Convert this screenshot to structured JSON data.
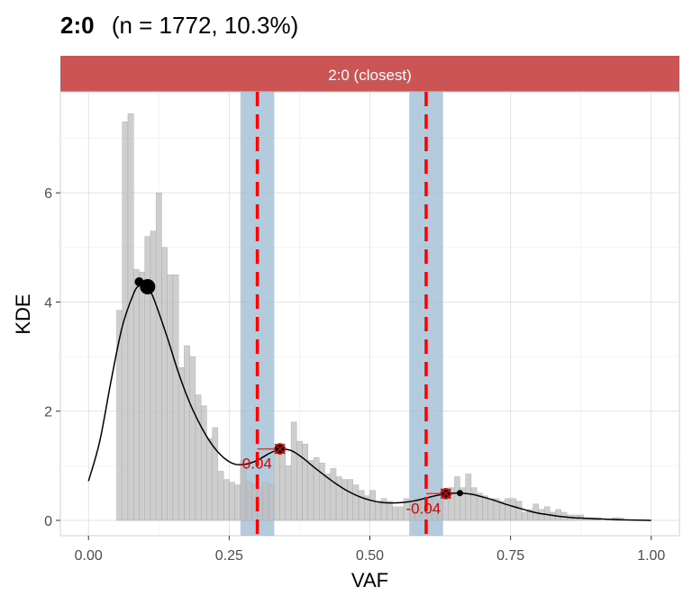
{
  "title": {
    "bold": "2:0",
    "rest": "(n = 1772, 10.3%)"
  },
  "facet_strip": {
    "label": "2:0 (closest)",
    "color": "#CD5454"
  },
  "chart_data": {
    "type": "bar",
    "xlabel": "VAF",
    "ylabel": "KDE",
    "xlim": [
      -0.05,
      1.05
    ],
    "ylim": [
      -0.28,
      7.85
    ],
    "x_ticks": [
      {
        "value": 0.0,
        "label": "0.00"
      },
      {
        "value": 0.25,
        "label": "0.25"
      },
      {
        "value": 0.5,
        "label": "0.50"
      },
      {
        "value": 0.75,
        "label": "0.75"
      },
      {
        "value": 1.0,
        "label": "1.00"
      }
    ],
    "y_ticks": [
      {
        "value": 0,
        "label": "0"
      },
      {
        "value": 2,
        "label": "2"
      },
      {
        "value": 4,
        "label": "4"
      },
      {
        "value": 6,
        "label": "6"
      }
    ],
    "grid": true,
    "histogram": {
      "bin_width": 0.01,
      "bins_start": [
        0.05,
        0.06,
        0.07,
        0.08,
        0.09,
        0.1,
        0.11,
        0.12,
        0.13,
        0.14,
        0.15,
        0.16,
        0.17,
        0.18,
        0.19,
        0.2,
        0.21,
        0.22,
        0.23,
        0.24,
        0.25,
        0.26,
        0.27,
        0.28,
        0.29,
        0.3,
        0.31,
        0.32,
        0.33,
        0.34,
        0.35,
        0.36,
        0.37,
        0.38,
        0.39,
        0.4,
        0.41,
        0.42,
        0.43,
        0.44,
        0.45,
        0.46,
        0.47,
        0.48,
        0.49,
        0.5,
        0.51,
        0.52,
        0.53,
        0.54,
        0.55,
        0.56,
        0.57,
        0.58,
        0.59,
        0.6,
        0.61,
        0.62,
        0.63,
        0.64,
        0.65,
        0.66,
        0.67,
        0.68,
        0.69,
        0.7,
        0.71,
        0.72,
        0.73,
        0.74,
        0.75,
        0.76,
        0.77,
        0.78,
        0.79,
        0.8,
        0.81,
        0.82,
        0.83,
        0.84,
        0.85,
        0.86,
        0.87,
        0.88,
        0.89,
        0.9,
        0.91,
        0.92,
        0.93,
        0.94
      ],
      "values": [
        3.85,
        7.3,
        7.45,
        4.6,
        4.55,
        5.2,
        5.3,
        6.0,
        5.0,
        4.5,
        4.5,
        2.8,
        3.2,
        3.0,
        2.3,
        2.1,
        1.5,
        1.7,
        0.9,
        0.75,
        0.7,
        0.65,
        1.1,
        0.7,
        0.65,
        0.6,
        0.7,
        0.65,
        1.25,
        1.35,
        1.0,
        1.8,
        1.45,
        1.4,
        1.1,
        1.15,
        1.05,
        0.85,
        0.95,
        0.8,
        0.75,
        0.75,
        0.65,
        0.55,
        0.45,
        0.55,
        0.35,
        0.4,
        0.35,
        0.25,
        0.25,
        0.4,
        0.35,
        0.4,
        0.35,
        0.45,
        0.4,
        0.35,
        0.55,
        0.6,
        0.8,
        0.6,
        0.85,
        0.6,
        0.5,
        0.45,
        0.4,
        0.4,
        0.35,
        0.4,
        0.4,
        0.35,
        0.15,
        0.2,
        0.3,
        0.2,
        0.25,
        0.15,
        0.2,
        0.15,
        0.1,
        0.1,
        0.1,
        0.05,
        0.05,
        0.05,
        0.0,
        0.0,
        0.05,
        0.05
      ],
      "color": "#BEBEBE"
    },
    "kde_curve": {
      "x": [
        0.0,
        0.02,
        0.04,
        0.06,
        0.08,
        0.09,
        0.1,
        0.11,
        0.12,
        0.14,
        0.16,
        0.18,
        0.2,
        0.22,
        0.24,
        0.26,
        0.28,
        0.3,
        0.32,
        0.34,
        0.36,
        0.38,
        0.4,
        0.42,
        0.44,
        0.46,
        0.48,
        0.5,
        0.52,
        0.54,
        0.56,
        0.58,
        0.6,
        0.62,
        0.64,
        0.66,
        0.68,
        0.7,
        0.72,
        0.74,
        0.76,
        0.78,
        0.8,
        0.82,
        0.84,
        0.86,
        0.88,
        0.9,
        0.95,
        1.0
      ],
      "y": [
        0.72,
        1.45,
        2.55,
        3.55,
        4.15,
        4.3,
        4.3,
        4.2,
        3.95,
        3.35,
        2.7,
        2.15,
        1.72,
        1.38,
        1.15,
        1.03,
        1.03,
        1.1,
        1.22,
        1.3,
        1.28,
        1.15,
        0.98,
        0.82,
        0.67,
        0.54,
        0.44,
        0.37,
        0.33,
        0.32,
        0.33,
        0.36,
        0.41,
        0.46,
        0.49,
        0.5,
        0.48,
        0.43,
        0.37,
        0.3,
        0.24,
        0.18,
        0.13,
        0.1,
        0.07,
        0.05,
        0.04,
        0.03,
        0.01,
        0.0
      ],
      "color": "#000000"
    },
    "expected_peaks": [
      0.3,
      0.6
    ],
    "expected_peak_color": "#FF0000",
    "expected_band_halfwidth": 0.03,
    "band_color": "#9BBAD3",
    "peaks": [
      {
        "x": 0.09,
        "y": 4.37
      },
      {
        "x": 0.105,
        "y": 4.28
      },
      {
        "x": 0.34,
        "y": 1.31
      },
      {
        "x": 0.635,
        "y": 0.49
      },
      {
        "x": 0.66,
        "y": 0.5
      }
    ],
    "matched_peaks": [
      {
        "x": 0.34,
        "y": 1.31,
        "expected": 0.3
      },
      {
        "x": 0.635,
        "y": 0.49,
        "expected": 0.6
      }
    ],
    "annotations": [
      {
        "text": "-0.04",
        "x": 0.295,
        "y": 0.95
      },
      {
        "text": "-0.04",
        "x": 0.595,
        "y": 0.12
      }
    ]
  }
}
